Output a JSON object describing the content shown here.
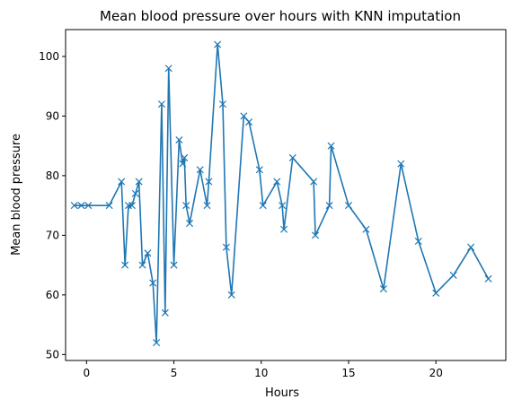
{
  "chart_data": {
    "type": "line",
    "title": "Mean blood pressure over hours with KNN imputation",
    "xlabel": "Hours",
    "ylabel": "Mean blood pressure",
    "xlim": [
      -1.2,
      24.0
    ],
    "ylim": [
      49.0,
      104.5
    ],
    "xticks": [
      0,
      5,
      10,
      15,
      20
    ],
    "yticks": [
      50,
      60,
      70,
      80,
      90,
      100
    ],
    "grid": false,
    "legend": "none",
    "series": [
      {
        "color": "#1f77b4",
        "marker": "x",
        "x": [
          -0.7,
          -0.3,
          0.1,
          1.3,
          2.0,
          2.2,
          2.4,
          2.6,
          2.8,
          3.0,
          3.2,
          3.5,
          3.8,
          4.0,
          4.3,
          4.5,
          4.7,
          5.0,
          5.3,
          5.5,
          5.6,
          5.7,
          5.9,
          6.5,
          6.9,
          7.0,
          7.5,
          7.8,
          8.0,
          8.3,
          9.0,
          9.3,
          9.9,
          10.1,
          10.9,
          11.2,
          11.3,
          11.8,
          13.0,
          13.1,
          13.9,
          14.0,
          15.0,
          16.0,
          17.0,
          18.0,
          19.0,
          20.0,
          21.0,
          22.0,
          23.0
        ],
        "y": [
          75,
          75,
          75,
          75,
          79,
          65,
          75,
          75,
          77,
          79,
          65,
          67,
          62,
          52,
          92,
          57,
          98,
          65,
          86,
          82,
          83,
          75,
          72,
          81,
          75,
          79,
          102,
          92,
          68,
          60,
          90,
          89,
          81,
          75,
          79,
          75,
          71,
          83,
          79,
          70,
          75,
          85,
          75,
          71,
          61,
          82,
          69,
          60.3,
          63.3,
          68,
          62.7
        ]
      }
    ]
  }
}
